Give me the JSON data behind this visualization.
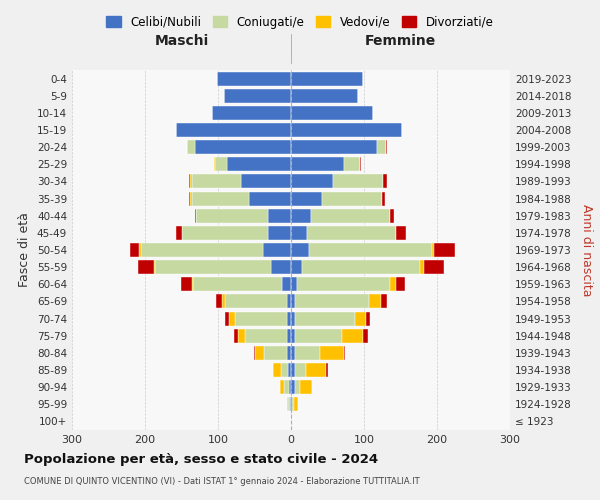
{
  "age_groups": [
    "100+",
    "95-99",
    "90-94",
    "85-89",
    "80-84",
    "75-79",
    "70-74",
    "65-69",
    "60-64",
    "55-59",
    "50-54",
    "45-49",
    "40-44",
    "35-39",
    "30-34",
    "25-29",
    "20-24",
    "15-19",
    "10-14",
    "5-9",
    "0-4"
  ],
  "birth_years": [
    "≤ 1923",
    "1924-1928",
    "1929-1933",
    "1934-1938",
    "1939-1943",
    "1944-1948",
    "1949-1953",
    "1954-1958",
    "1959-1963",
    "1964-1968",
    "1969-1973",
    "1974-1978",
    "1979-1983",
    "1984-1988",
    "1989-1993",
    "1994-1998",
    "1999-2003",
    "2004-2008",
    "2009-2013",
    "2014-2018",
    "2019-2023"
  ],
  "colors": {
    "single": "#4472c4",
    "married": "#c5d9a0",
    "widowed": "#ffc000",
    "divorced": "#c00000"
  },
  "male": {
    "single": [
      0,
      2,
      3,
      4,
      5,
      5,
      5,
      5,
      12,
      28,
      38,
      32,
      32,
      58,
      68,
      88,
      132,
      158,
      108,
      92,
      102
    ],
    "married": [
      0,
      2,
      6,
      10,
      32,
      58,
      72,
      85,
      122,
      158,
      168,
      118,
      98,
      78,
      68,
      16,
      10,
      0,
      0,
      0,
      0
    ],
    "widowed": [
      0,
      2,
      6,
      10,
      12,
      10,
      8,
      5,
      2,
      2,
      2,
      0,
      0,
      2,
      2,
      2,
      0,
      0,
      0,
      0,
      0
    ],
    "divorced": [
      0,
      0,
      0,
      0,
      2,
      5,
      5,
      8,
      15,
      22,
      12,
      8,
      2,
      2,
      2,
      0,
      0,
      0,
      0,
      0,
      0
    ]
  },
  "female": {
    "single": [
      0,
      2,
      5,
      5,
      5,
      5,
      5,
      5,
      8,
      15,
      25,
      22,
      28,
      42,
      58,
      72,
      118,
      152,
      112,
      92,
      98
    ],
    "married": [
      0,
      2,
      8,
      15,
      35,
      65,
      82,
      102,
      128,
      162,
      168,
      122,
      108,
      82,
      68,
      22,
      12,
      0,
      0,
      0,
      0
    ],
    "widowed": [
      0,
      6,
      16,
      28,
      32,
      28,
      16,
      16,
      8,
      5,
      3,
      0,
      0,
      0,
      0,
      0,
      0,
      0,
      0,
      0,
      0
    ],
    "divorced": [
      0,
      0,
      0,
      2,
      2,
      8,
      5,
      8,
      12,
      28,
      28,
      14,
      5,
      5,
      5,
      2,
      2,
      0,
      0,
      0,
      0
    ]
  },
  "xlim": 300,
  "title": "Popolazione per età, sesso e stato civile - 2024",
  "subtitle": "COMUNE DI QUINTO VICENTINO (VI) - Dati ISTAT 1° gennaio 2024 - Elaborazione TUTTITALIA.IT",
  "ylabel_left": "Fasce di età",
  "ylabel_right": "Anni di nascita",
  "xlabel_male": "Maschi",
  "xlabel_female": "Femmine",
  "background_color": "#f0f0f0",
  "plot_bg": "#f8f8f8",
  "grid_color": "#cccccc"
}
